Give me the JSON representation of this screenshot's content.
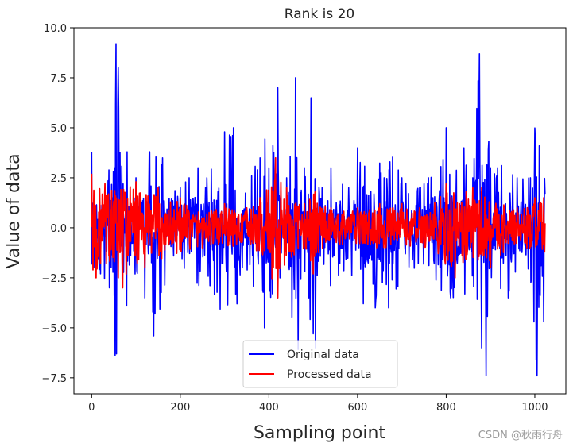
{
  "chart_data": {
    "type": "line",
    "title": "Rank is 20",
    "xlabel": "Sampling point",
    "ylabel": "Value of data",
    "xlim": [
      -40,
      1070
    ],
    "ylim": [
      -8.3,
      10.0
    ],
    "xticks": [
      0,
      200,
      400,
      600,
      800,
      1000
    ],
    "xtick_labels": [
      "0",
      "200",
      "400",
      "600",
      "800",
      "1000"
    ],
    "yticks": [
      -7.5,
      -5.0,
      -2.5,
      0.0,
      2.5,
      5.0,
      7.5,
      10.0
    ],
    "ytick_labels": [
      "−7.5",
      "−5.0",
      "−2.5",
      "0.0",
      "2.5",
      "5.0",
      "7.5",
      "10.0"
    ],
    "n_points": 1024,
    "series": [
      {
        "name": "Original data",
        "color": "#0000ff",
        "envelope": [
          [
            0,
            3.8
          ],
          [
            5,
            -2.0
          ],
          [
            20,
            -2.3
          ],
          [
            40,
            -3.0
          ],
          [
            55,
            9.2
          ],
          [
            56,
            -6.3
          ],
          [
            60,
            8.0
          ],
          [
            80,
            3.8
          ],
          [
            100,
            2.5
          ],
          [
            120,
            -3.5
          ],
          [
            130,
            3.8
          ],
          [
            140,
            -5.4
          ],
          [
            160,
            3.5
          ],
          [
            200,
            2.0
          ],
          [
            220,
            2.5
          ],
          [
            240,
            3.0
          ],
          [
            260,
            2.5
          ],
          [
            300,
            4.8
          ],
          [
            320,
            5.0
          ],
          [
            340,
            -2.0
          ],
          [
            380,
            3.5
          ],
          [
            390,
            -5.0
          ],
          [
            400,
            3.0
          ],
          [
            420,
            7.0
          ],
          [
            425,
            -2.5
          ],
          [
            440,
            2.5
          ],
          [
            460,
            7.5
          ],
          [
            480,
            3.0
          ],
          [
            490,
            -3.5
          ],
          [
            495,
            6.5
          ],
          [
            500,
            -5.3
          ],
          [
            505,
            -6.0
          ],
          [
            520,
            2.0
          ],
          [
            540,
            3.0
          ],
          [
            580,
            2.0
          ],
          [
            600,
            4.0
          ],
          [
            640,
            -4.0
          ],
          [
            660,
            2.5
          ],
          [
            670,
            -4.0
          ],
          [
            700,
            2.5
          ],
          [
            740,
            2.0
          ],
          [
            760,
            2.5
          ],
          [
            800,
            5.0
          ],
          [
            810,
            -3.5
          ],
          [
            840,
            4.0
          ],
          [
            860,
            2.5
          ],
          [
            875,
            8.7
          ],
          [
            880,
            -6.0
          ],
          [
            890,
            -7.4
          ],
          [
            900,
            3.0
          ],
          [
            940,
            -3.5
          ],
          [
            960,
            2.5
          ],
          [
            990,
            2.5
          ],
          [
            1005,
            -7.4
          ],
          [
            1010,
            4.1
          ],
          [
            1020,
            -4.7
          ]
        ]
      },
      {
        "name": "Processed data",
        "color": "#ff0000",
        "envelope": [
          [
            0,
            2.7
          ],
          [
            10,
            -2.5
          ],
          [
            30,
            2.2
          ],
          [
            60,
            -2.5
          ],
          [
            70,
            -3.0
          ],
          [
            100,
            2.3
          ],
          [
            120,
            -2.0
          ],
          [
            150,
            2.0
          ],
          [
            200,
            1.5
          ],
          [
            250,
            -1.0
          ],
          [
            300,
            1.2
          ],
          [
            350,
            1.0
          ],
          [
            380,
            1.5
          ],
          [
            415,
            3.5
          ],
          [
            420,
            -3.5
          ],
          [
            440,
            2.0
          ],
          [
            480,
            1.2
          ],
          [
            500,
            -2.3
          ],
          [
            540,
            1.0
          ],
          [
            600,
            1.0
          ],
          [
            650,
            1.2
          ],
          [
            700,
            1.2
          ],
          [
            740,
            1.0
          ],
          [
            800,
            2.2
          ],
          [
            820,
            -2.5
          ],
          [
            860,
            2.0
          ],
          [
            880,
            2.0
          ],
          [
            900,
            -2.0
          ],
          [
            960,
            1.0
          ],
          [
            1000,
            1.5
          ],
          [
            1020,
            1.5
          ]
        ]
      }
    ],
    "legend_position": "lower center"
  },
  "watermark": "CSDN @秋雨行舟"
}
